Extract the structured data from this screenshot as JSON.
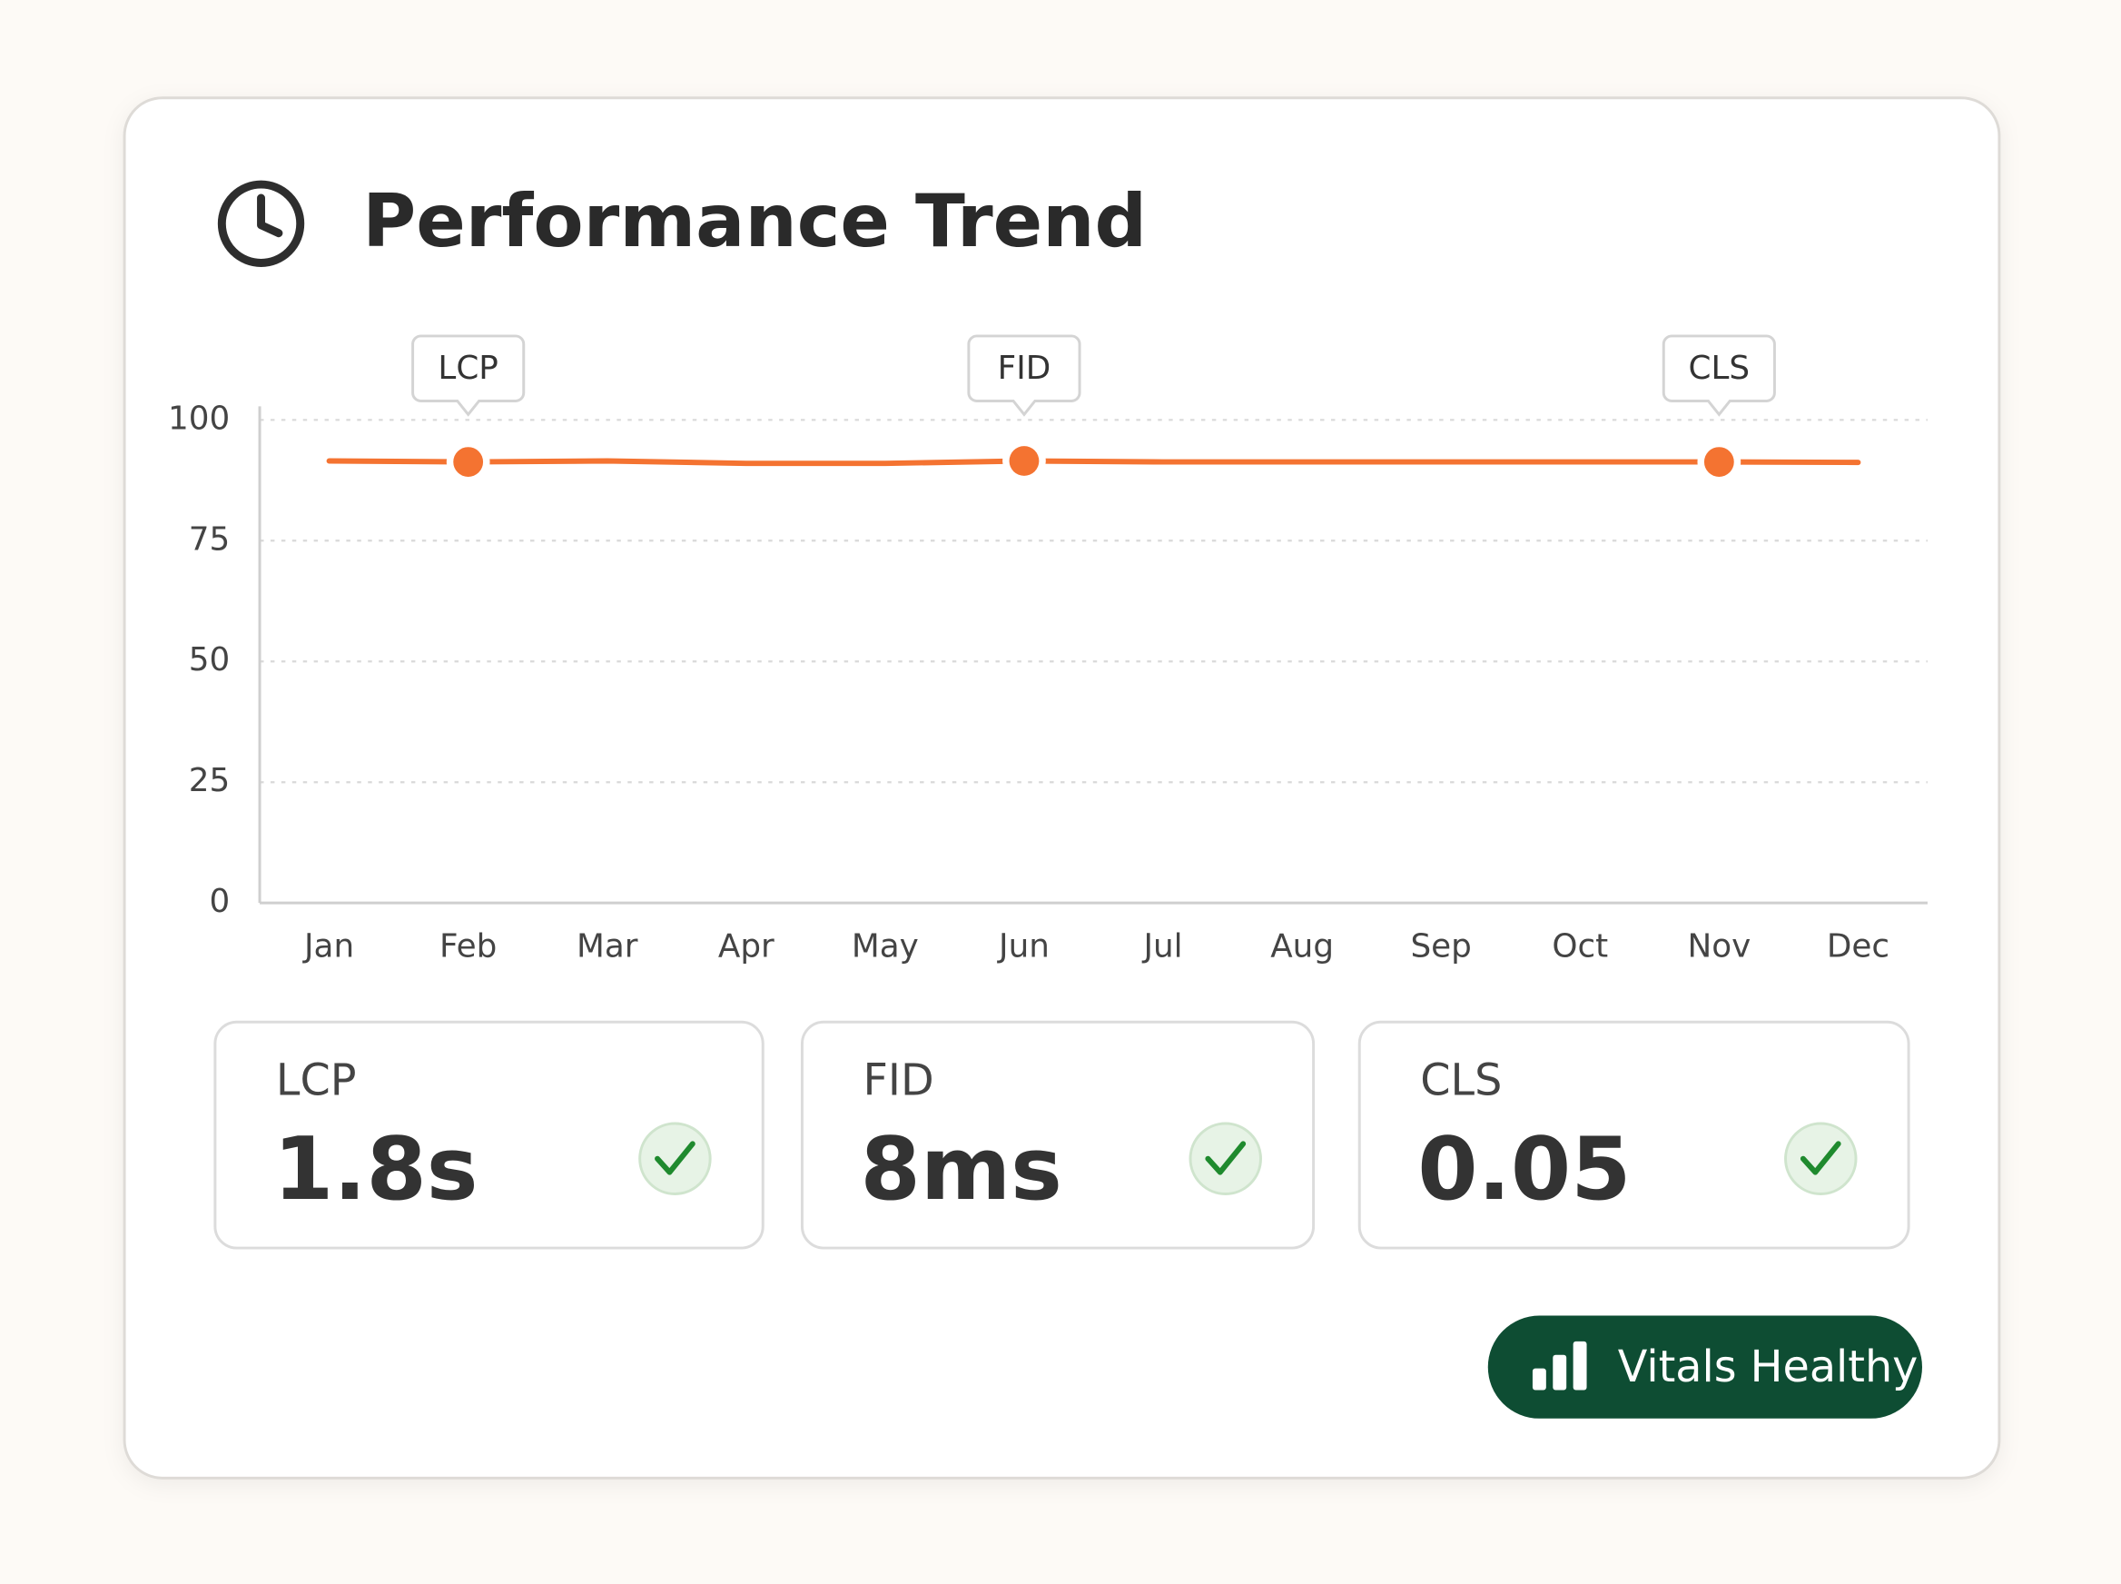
{
  "card": {
    "title": "Performance Trend"
  },
  "chart_data": {
    "type": "line",
    "categories": [
      "Jan",
      "Feb",
      "Mar",
      "Apr",
      "May",
      "Jun",
      "Jul",
      "Aug",
      "Sep",
      "Oct",
      "Nov",
      "Dec"
    ],
    "series": [
      {
        "color": "#f47331",
        "values": [
          91.5,
          91.3,
          91.5,
          91,
          91,
          91.5,
          91.3,
          91.3,
          91.3,
          91.3,
          91.3,
          91.2
        ]
      }
    ],
    "ylim": [
      0,
      100
    ],
    "yticks": [
      0,
      25,
      50,
      75,
      100
    ],
    "grid": true,
    "annotations": [
      {
        "text": "LCP",
        "category": "Feb"
      },
      {
        "text": "FID",
        "category": "Jun"
      },
      {
        "text": "CLS",
        "category": "Nov"
      }
    ]
  },
  "metrics": [
    {
      "label": "LCP",
      "value": "1.8s"
    },
    {
      "label": "FID",
      "value": "8ms"
    },
    {
      "label": "CLS",
      "value": "0.05"
    }
  ],
  "badge": {
    "text": "Vitals Healthy"
  }
}
